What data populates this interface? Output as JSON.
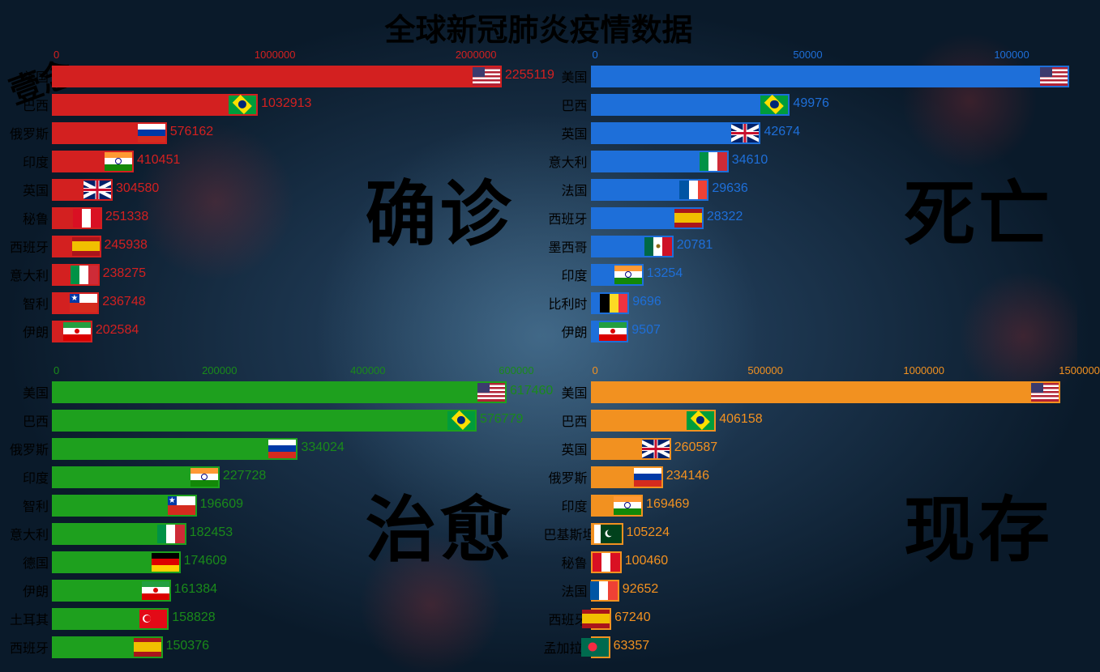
{
  "title": "全球新冠肺炎疫情数据",
  "watermark": "壹念",
  "panels": [
    {
      "id": "confirmed",
      "label": "确诊",
      "color": "#d32020",
      "text_color": "#d32020",
      "axis": {
        "ticks": [
          0,
          1000000,
          2000000
        ],
        "max": 2400000
      },
      "bars": [
        {
          "country": "美国",
          "flag": "us",
          "value": 2255119
        },
        {
          "country": "巴西",
          "flag": "br",
          "value": 1032913
        },
        {
          "country": "俄罗斯",
          "flag": "ru",
          "value": 576162
        },
        {
          "country": "印度",
          "flag": "in",
          "value": 410451
        },
        {
          "country": "英国",
          "flag": "gb",
          "value": 304580
        },
        {
          "country": "秘鲁",
          "flag": "pe",
          "value": 251338
        },
        {
          "country": "西班牙",
          "flag": "es",
          "value": 245938
        },
        {
          "country": "意大利",
          "flag": "it",
          "value": 238275
        },
        {
          "country": "智利",
          "flag": "cl",
          "value": 236748
        },
        {
          "country": "伊朗",
          "flag": "ir",
          "value": 202584
        }
      ]
    },
    {
      "id": "deaths",
      "label": "死亡",
      "color": "#1e6fd9",
      "text_color": "#1e6fd9",
      "axis": {
        "ticks": [
          0,
          50000,
          100000
        ],
        "max": 120000
      },
      "bars": [
        {
          "country": "美国",
          "flag": "us",
          "value": 120000,
          "hide_value": true
        },
        {
          "country": "巴西",
          "flag": "br",
          "value": 49976
        },
        {
          "country": "英国",
          "flag": "gb",
          "value": 42674
        },
        {
          "country": "意大利",
          "flag": "it",
          "value": 34610
        },
        {
          "country": "法国",
          "flag": "fr",
          "value": 29636
        },
        {
          "country": "西班牙",
          "flag": "es",
          "value": 28322
        },
        {
          "country": "墨西哥",
          "flag": "mx",
          "value": 20781
        },
        {
          "country": "印度",
          "flag": "in",
          "value": 13254
        },
        {
          "country": "比利时",
          "flag": "be",
          "value": 9696
        },
        {
          "country": "伊朗",
          "flag": "ir",
          "value": 9507
        }
      ]
    },
    {
      "id": "recovered",
      "label": "治愈",
      "color": "#1ea01e",
      "text_color": "#1a8a1a",
      "axis": {
        "ticks": [
          0,
          200000,
          400000,
          600000
        ],
        "max": 650000
      },
      "bars": [
        {
          "country": "美国",
          "flag": "us",
          "value": 617460
        },
        {
          "country": "巴西",
          "flag": "br",
          "value": 576779
        },
        {
          "country": "俄罗斯",
          "flag": "ru",
          "value": 334024
        },
        {
          "country": "印度",
          "flag": "in",
          "value": 227728
        },
        {
          "country": "智利",
          "flag": "cl",
          "value": 196609
        },
        {
          "country": "意大利",
          "flag": "it",
          "value": 182453
        },
        {
          "country": "德国",
          "flag": "de",
          "value": 174609
        },
        {
          "country": "伊朗",
          "flag": "ir",
          "value": 161384
        },
        {
          "country": "土耳其",
          "flag": "tr",
          "value": 158828
        },
        {
          "country": "西班牙",
          "flag": "es",
          "value": 150376
        }
      ]
    },
    {
      "id": "active",
      "label": "现存",
      "color": "#f29120",
      "text_color": "#f29120",
      "axis": {
        "ticks": [
          0,
          500000,
          1000000,
          1500000
        ],
        "max": 1550000
      },
      "bars": [
        {
          "country": "美国",
          "flag": "us",
          "value": 1520000,
          "hide_value": true
        },
        {
          "country": "巴西",
          "flag": "br",
          "value": 406158
        },
        {
          "country": "英国",
          "flag": "gb",
          "value": 260587
        },
        {
          "country": "俄罗斯",
          "flag": "ru",
          "value": 234146
        },
        {
          "country": "印度",
          "flag": "in",
          "value": 169469
        },
        {
          "country": "巴基斯坦",
          "flag": "pk",
          "value": 105224
        },
        {
          "country": "秘鲁",
          "flag": "pe",
          "value": 100460
        },
        {
          "country": "法国",
          "flag": "fr",
          "value": 92652
        },
        {
          "country": "西班牙",
          "flag": "es",
          "value": 67240
        },
        {
          "country": "孟加拉国",
          "flag": "bd",
          "value": 63357
        }
      ]
    }
  ]
}
